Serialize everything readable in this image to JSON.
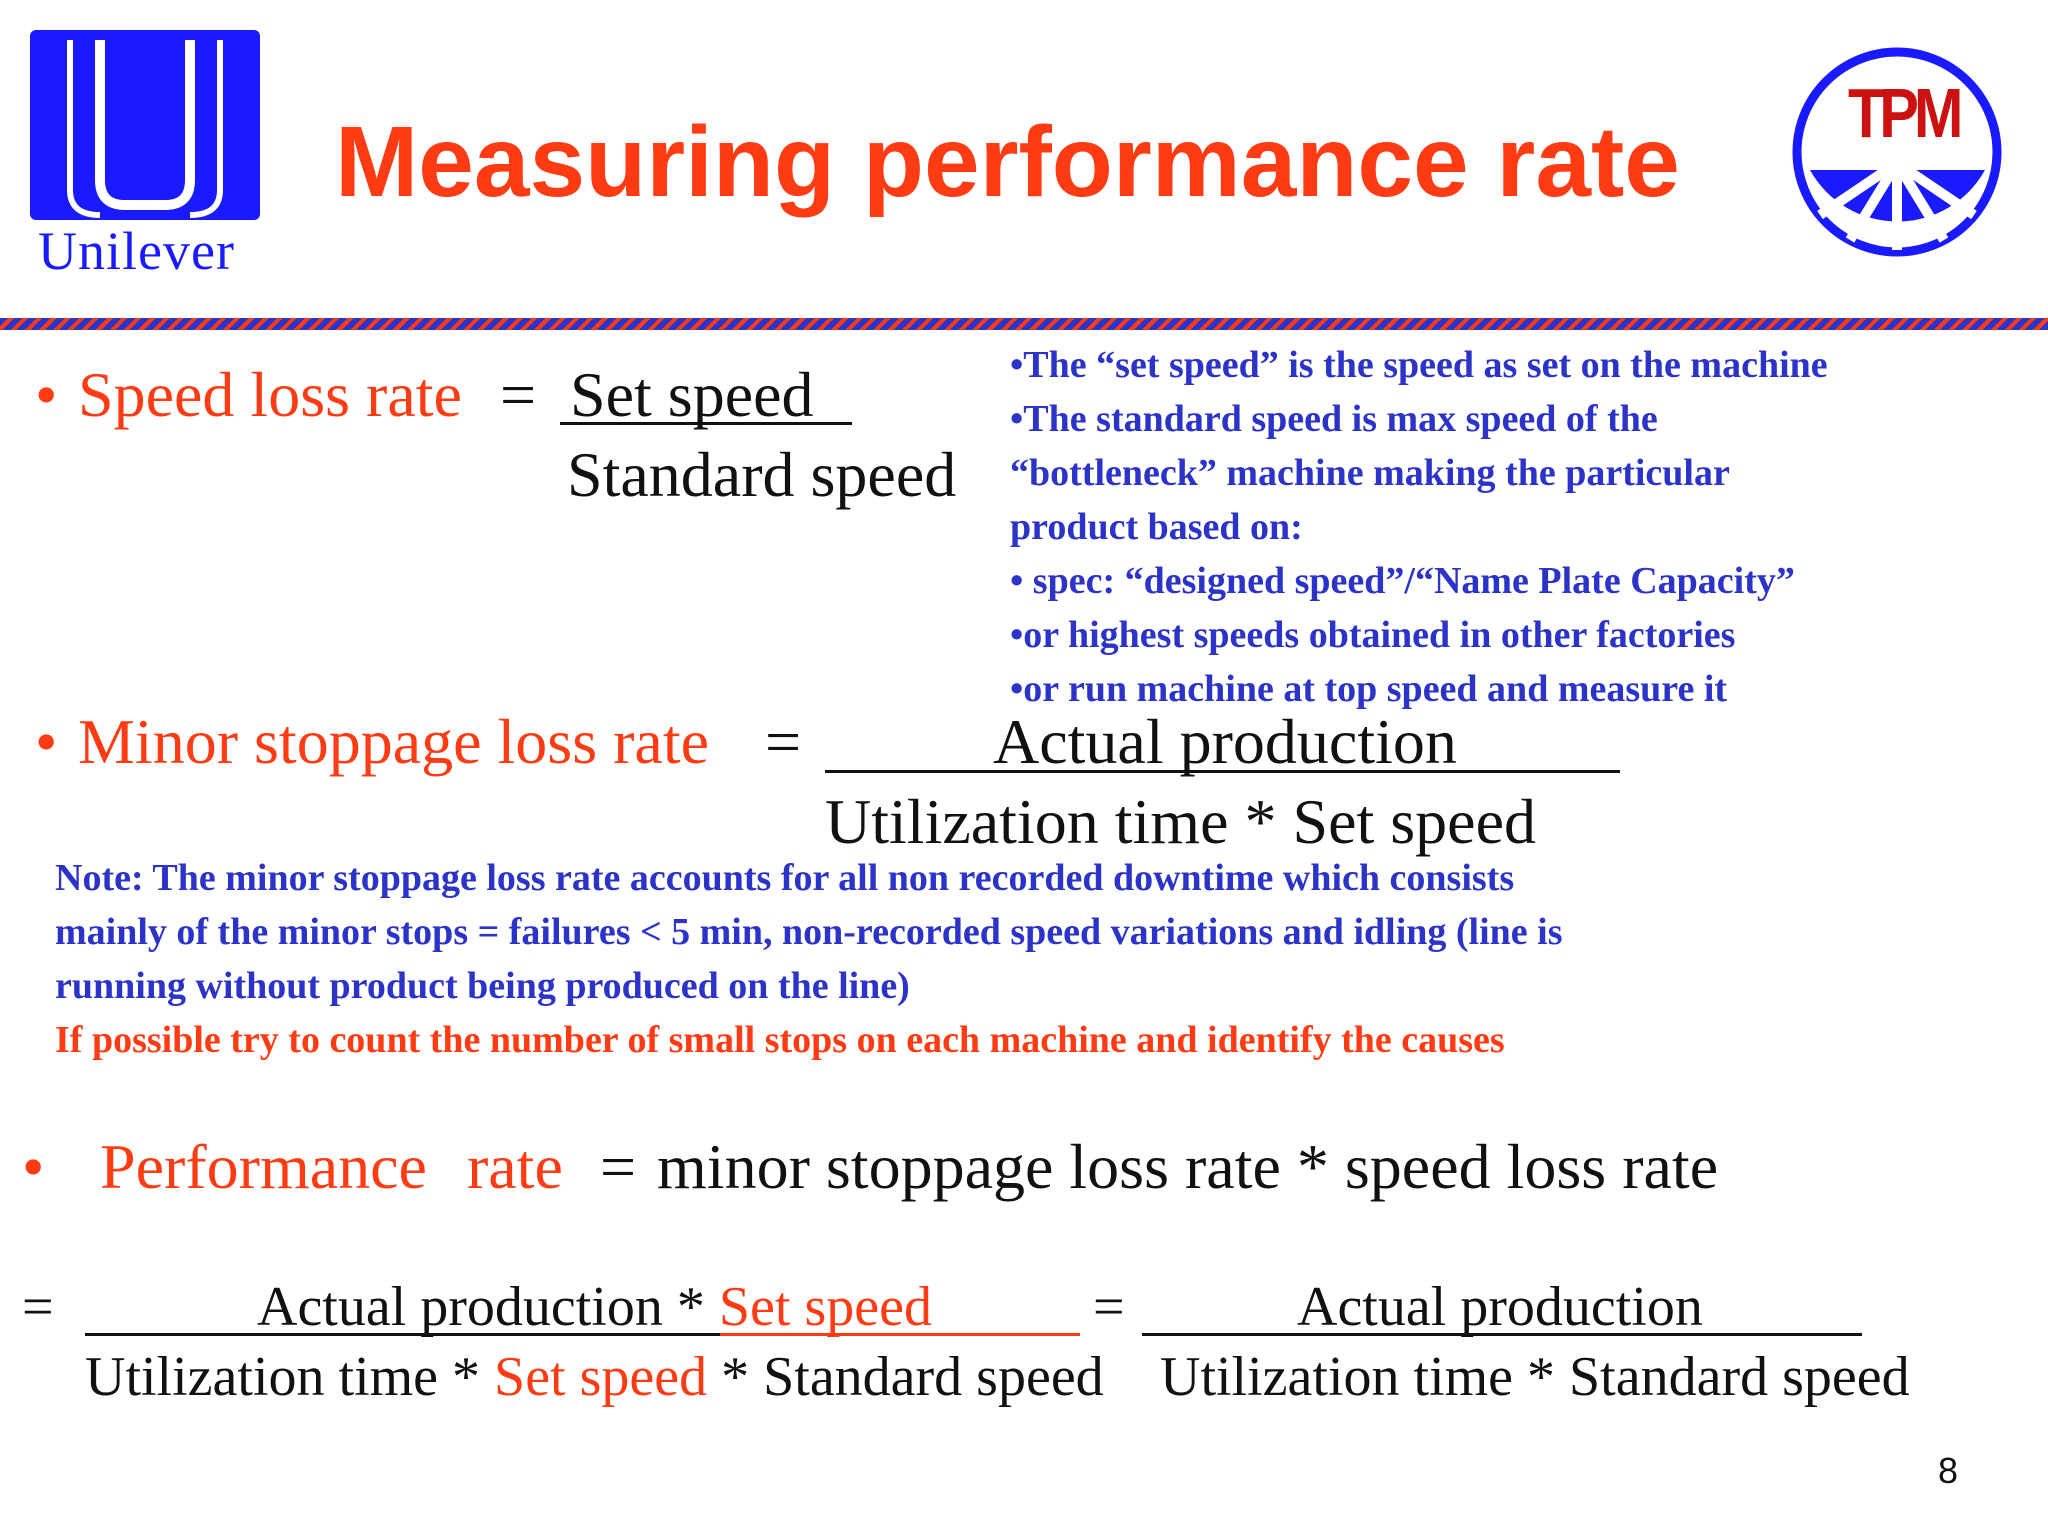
{
  "header": {
    "left_logo_text": "Unilever",
    "title": "Measuring performance rate",
    "right_logo_text": "TPM"
  },
  "speed_loss": {
    "bullet": "•",
    "label": "Speed loss rate",
    "equals": "=",
    "numerator": " Set speed",
    "denominator": "Standard speed"
  },
  "speed_notes": [
    "•The “set speed” is the speed as set on the machine",
    "•The standard speed is max speed of the",
    "“bottleneck” machine making the particular",
    "product based on:",
    "• spec: “designed speed”/“Name Plate Capacity”",
    "•or highest speeds obtained in other factories",
    "•or run machine at top speed and measure it"
  ],
  "minor_stoppage": {
    "bullet": "•",
    "label": "Minor stoppage loss rate",
    "equals": "=",
    "numerator": "Actual production",
    "denominator": "Utilization time * Set speed"
  },
  "minor_notes": [
    "Note: The minor stoppage loss rate accounts for all non recorded downtime which consists",
    "mainly of the minor stops = failures < 5 min, non-recorded speed variations and idling (line is",
    "running without product being produced on the line)"
  ],
  "minor_note_highlight": "If possible try to count the number of small stops on each machine and identify the causes",
  "performance": {
    "bullet": "•",
    "label": "Performance rate",
    "equals": "=",
    "rhs": "minor stoppage loss rate * speed loss rate"
  },
  "expansion": {
    "equals1": "=",
    "num1_part1": "Actual production * ",
    "num1_part2": "Set speed",
    "den1_part1": "Utilization time * ",
    "den1_part2": "Set speed",
    "den1_part3": " * Standard speed",
    "equals2": "=",
    "num2": "Actual  production",
    "den2": "Utilization time * Standard speed"
  },
  "page_number": "8",
  "colors": {
    "accent_red": "#ff3b14",
    "note_blue": "#2b33c8",
    "logo_blue": "#1a1aff"
  }
}
